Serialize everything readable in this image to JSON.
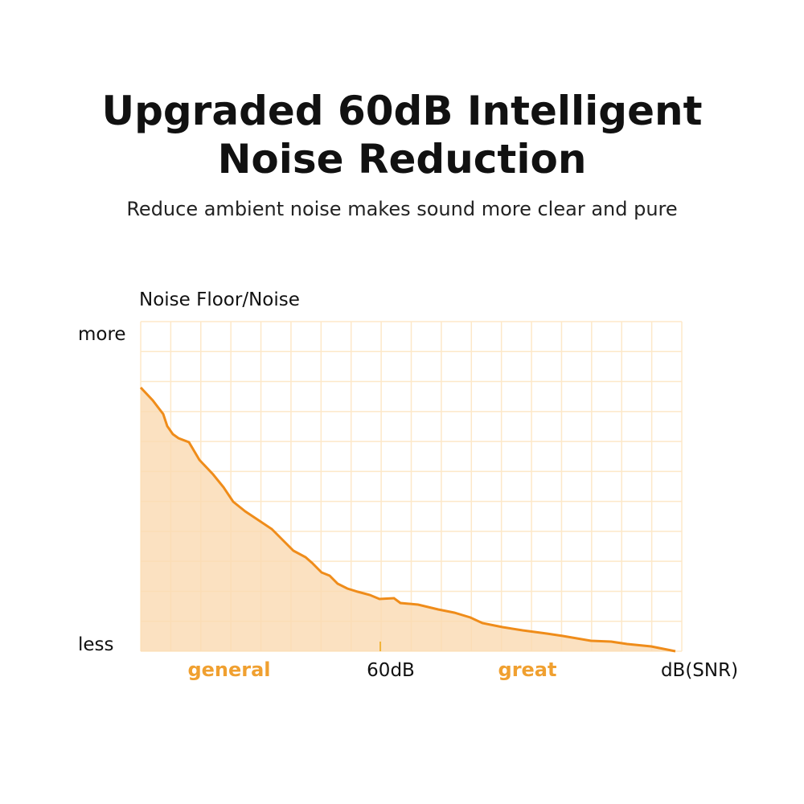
{
  "header": {
    "title_lines": [
      "Upgraded 60dB Intelligent",
      "Noise Reduction"
    ],
    "subtitle": "Reduce ambient noise makes sound more clear and pure"
  },
  "diagram": {
    "y_axis_label": "Noise Floor/Noise",
    "y_top": "more",
    "y_bottom": "less",
    "x_labels": {
      "left": "general",
      "middle": "60dB",
      "right": "great",
      "axis": "dB(SNR)"
    }
  }
}
